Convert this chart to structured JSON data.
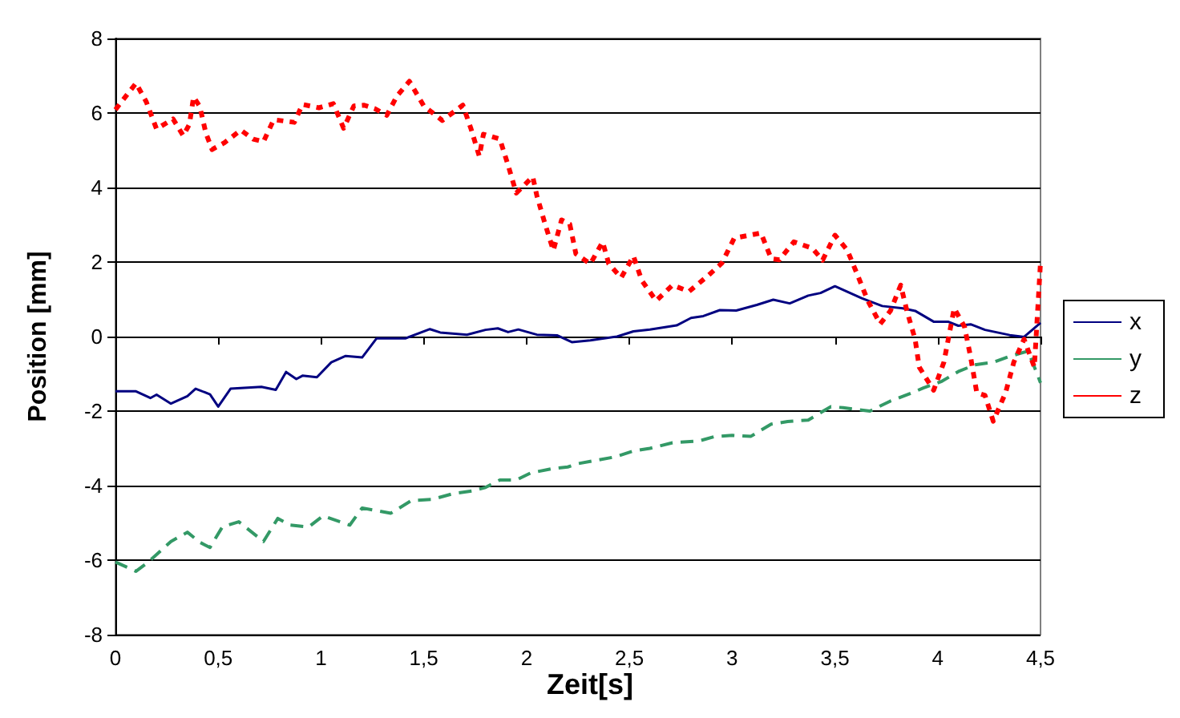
{
  "chart_data": {
    "type": "line",
    "xlabel": "Zeit[s]",
    "ylabel": "Position [mm]",
    "xlim": [
      0,
      4.5
    ],
    "xticks": [
      0,
      {
        "value": 0.5,
        "label": "0,5"
      },
      1,
      {
        "value": 1.5,
        "label": "1,5"
      },
      2,
      {
        "value": 2.5,
        "label": "2,5"
      },
      3,
      {
        "value": 3.5,
        "label": "3,5"
      },
      4,
      {
        "value": 4.5,
        "label": "4,5"
      }
    ],
    "ylim": [
      -8,
      8
    ],
    "yticks": [
      -8,
      -6,
      -4,
      -2,
      0,
      2,
      4,
      6,
      8
    ],
    "grid": "y",
    "legend": "right",
    "marker": "none",
    "series": [
      {
        "name": "x",
        "color": "#000080",
        "line_style": "solid",
        "x": [
          0,
          0.1,
          0.17,
          0.2,
          0.27,
          0.35,
          0.39,
          0.46,
          0.5,
          0.56,
          0.71,
          0.78,
          0.83,
          0.88,
          0.91,
          0.98,
          1.05,
          1.12,
          1.2,
          1.27,
          1.41,
          1.53,
          1.58,
          1.71,
          1.8,
          1.86,
          1.91,
          1.96,
          2.05,
          2.15,
          2.22,
          2.31,
          2.44,
          2.52,
          2.6,
          2.73,
          2.8,
          2.86,
          2.94,
          3.02,
          3.12,
          3.2,
          3.28,
          3.37,
          3.43,
          3.5,
          3.63,
          3.73,
          3.83,
          3.89,
          3.98,
          4.05,
          4.1,
          4.16,
          4.23,
          4.35,
          4.42,
          4.5
        ],
        "values": [
          -1.47,
          -1.47,
          -1.65,
          -1.56,
          -1.8,
          -1.6,
          -1.4,
          -1.55,
          -1.88,
          -1.4,
          -1.35,
          -1.43,
          -0.95,
          -1.14,
          -1.05,
          -1.09,
          -0.69,
          -0.52,
          -0.56,
          -0.05,
          -0.05,
          0.2,
          0.11,
          0.05,
          0.18,
          0.22,
          0.12,
          0.19,
          0.05,
          0.03,
          -0.15,
          -0.1,
          0,
          0.14,
          0.19,
          0.3,
          0.5,
          0.55,
          0.71,
          0.7,
          0.85,
          0.99,
          0.89,
          1.1,
          1.17,
          1.35,
          1.03,
          0.82,
          0.76,
          0.69,
          0.4,
          0.4,
          0.29,
          0.33,
          0.18,
          0.04,
          -0.01,
          0.37
        ]
      },
      {
        "name": "y",
        "color": "#339966",
        "line_style": "dashed",
        "x": [
          0,
          0.1,
          0.16,
          0.27,
          0.35,
          0.41,
          0.46,
          0.52,
          0.6,
          0.72,
          0.79,
          0.85,
          0.94,
          1.01,
          1.14,
          1.2,
          1.34,
          1.44,
          1.54,
          1.64,
          1.74,
          1.8,
          1.87,
          1.95,
          2.02,
          2.12,
          2.2,
          2.25,
          2.43,
          2.52,
          2.6,
          2.71,
          2.84,
          2.91,
          3.0,
          3.09,
          3.19,
          3.27,
          3.37,
          3.48,
          3.54,
          3.67,
          3.77,
          3.87,
          3.93,
          4.02,
          4.1,
          4.18,
          4.27,
          4.35,
          4.44,
          4.5
        ],
        "values": [
          -6.05,
          -6.3,
          -6.05,
          -5.5,
          -5.25,
          -5.52,
          -5.66,
          -5.11,
          -4.97,
          -5.5,
          -4.88,
          -5.06,
          -5.11,
          -4.81,
          -5.06,
          -4.6,
          -4.74,
          -4.4,
          -4.37,
          -4.22,
          -4.14,
          -4.05,
          -3.85,
          -3.85,
          -3.66,
          -3.55,
          -3.5,
          -3.41,
          -3.23,
          -3.07,
          -3.0,
          -2.85,
          -2.8,
          -2.69,
          -2.65,
          -2.68,
          -2.35,
          -2.28,
          -2.24,
          -1.88,
          -1.91,
          -2.0,
          -1.73,
          -1.52,
          -1.38,
          -1.2,
          -0.94,
          -0.76,
          -0.69,
          -0.53,
          -0.39,
          -1.24
        ]
      },
      {
        "name": "z",
        "color": "#ff0000",
        "line_style": "dotted",
        "x": [
          0,
          0.1,
          0.15,
          0.2,
          0.28,
          0.33,
          0.36,
          0.38,
          0.41,
          0.44,
          0.47,
          0.53,
          0.61,
          0.67,
          0.72,
          0.77,
          0.87,
          0.91,
          0.99,
          1.06,
          1.11,
          1.16,
          1.21,
          1.26,
          1.32,
          1.37,
          1.43,
          1.5,
          1.59,
          1.69,
          1.73,
          1.77,
          1.79,
          1.87,
          1.91,
          1.95,
          2.03,
          2.05,
          2.09,
          2.13,
          2.17,
          2.21,
          2.24,
          2.31,
          2.37,
          2.4,
          2.46,
          2.52,
          2.56,
          2.63,
          2.71,
          2.79,
          2.88,
          2.95,
          3.01,
          3.14,
          3.19,
          3.23,
          3.3,
          3.39,
          3.44,
          3.5,
          3.56,
          3.61,
          3.66,
          3.72,
          3.77,
          3.82,
          3.85,
          3.89,
          3.91,
          3.98,
          4.03,
          4.08,
          4.13,
          4.16,
          4.19,
          4.23,
          4.27,
          4.33,
          4.37,
          4.42,
          4.47,
          4.5
        ],
        "values": [
          6.09,
          6.8,
          6.3,
          5.57,
          5.84,
          5.39,
          5.7,
          6.43,
          6.18,
          5.46,
          5.02,
          5.2,
          5.54,
          5.3,
          5.23,
          5.82,
          5.75,
          6.23,
          6.14,
          6.25,
          5.59,
          6.19,
          6.21,
          6.12,
          5.94,
          6.46,
          6.85,
          6.19,
          5.8,
          6.21,
          5.57,
          4.84,
          5.43,
          5.3,
          4.6,
          3.85,
          4.29,
          3.78,
          3.02,
          2.31,
          3.13,
          3.02,
          2.22,
          1.95,
          2.54,
          1.95,
          1.58,
          2.16,
          1.51,
          0.96,
          1.38,
          1.21,
          1.62,
          1.97,
          2.64,
          2.78,
          2.09,
          2.06,
          2.54,
          2.37,
          2.05,
          2.72,
          2.32,
          1.65,
          0.96,
          0.34,
          0.69,
          1.38,
          0.69,
          -0.07,
          -0.82,
          -1.44,
          -0.69,
          0.76,
          0.27,
          -0.55,
          -1.51,
          -1.58,
          -2.27,
          -1.51,
          -0.69,
          -0.07,
          -0.82,
          2.0
        ]
      }
    ]
  }
}
